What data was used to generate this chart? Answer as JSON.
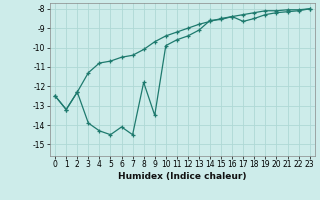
{
  "xlabel": "Humidex (Indice chaleur)",
  "bg_color": "#cdecea",
  "grid_color": "#afd8d5",
  "line_color": "#1e7a6e",
  "xlim": [
    -0.5,
    23.5
  ],
  "ylim": [
    -15.6,
    -7.7
  ],
  "xticks": [
    0,
    1,
    2,
    3,
    4,
    5,
    6,
    7,
    8,
    9,
    10,
    11,
    12,
    13,
    14,
    15,
    16,
    17,
    18,
    19,
    20,
    21,
    22,
    23
  ],
  "yticks": [
    -15,
    -14,
    -13,
    -12,
    -11,
    -10,
    -9,
    -8
  ],
  "line1_x": [
    0,
    1,
    2,
    3,
    4,
    5,
    6,
    7,
    8,
    9,
    10,
    11,
    12,
    13,
    14,
    15,
    16,
    17,
    18,
    19,
    20,
    21,
    22,
    23
  ],
  "line1_y": [
    -12.5,
    -13.2,
    -12.3,
    -13.9,
    -14.3,
    -14.5,
    -14.1,
    -14.5,
    -11.8,
    -13.5,
    -9.9,
    -9.6,
    -9.4,
    -9.1,
    -8.6,
    -8.55,
    -8.4,
    -8.65,
    -8.5,
    -8.3,
    -8.2,
    -8.15,
    -8.1,
    -8.0
  ],
  "line2_x": [
    0,
    1,
    2,
    3,
    4,
    5,
    6,
    7,
    8,
    9,
    10,
    11,
    12,
    13,
    14,
    15,
    16,
    17,
    18,
    19,
    20,
    21,
    22,
    23
  ],
  "line2_y": [
    -12.5,
    -13.2,
    -12.3,
    -11.3,
    -10.8,
    -10.7,
    -10.5,
    -10.4,
    -10.1,
    -9.7,
    -9.4,
    -9.2,
    -9.0,
    -8.8,
    -8.65,
    -8.5,
    -8.4,
    -8.3,
    -8.2,
    -8.1,
    -8.1,
    -8.05,
    -8.05,
    -8.0
  ]
}
